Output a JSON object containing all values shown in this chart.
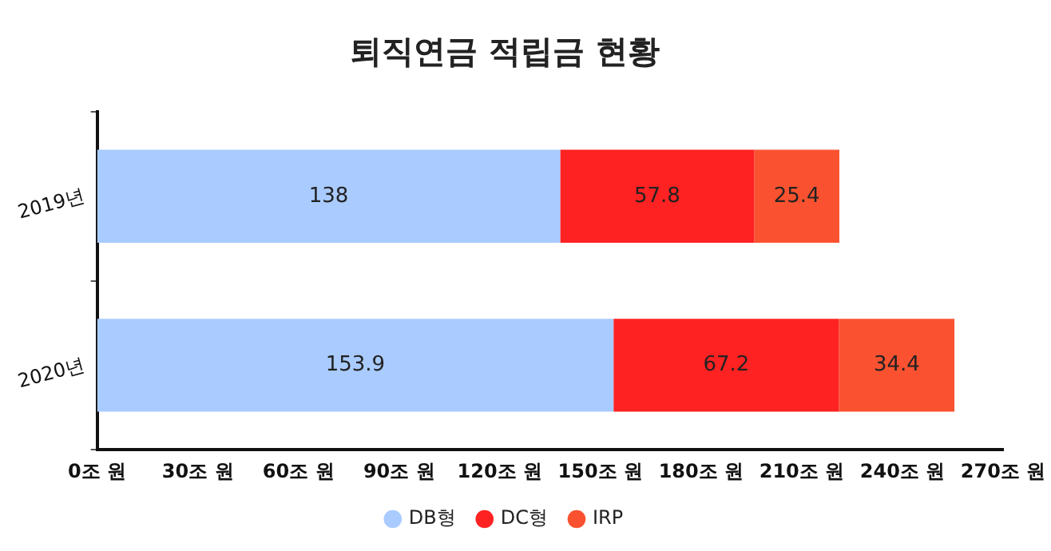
{
  "chart_data": {
    "type": "bar",
    "orientation": "horizontal",
    "stacked": true,
    "title": "퇴직연금 적립금 현황",
    "categories": [
      "2019년",
      "2020년"
    ],
    "series": [
      {
        "name": "DB형",
        "color": "#a9cbff",
        "values": [
          138,
          153.9
        ]
      },
      {
        "name": "DC형",
        "color": "#ff2222",
        "values": [
          57.8,
          67.2
        ]
      },
      {
        "name": "IRP",
        "color": "#fa5230",
        "values": [
          25.4,
          34.4
        ]
      }
    ],
    "xlim": [
      0,
      270
    ],
    "xticks": [
      {
        "value": 0,
        "label": "0조 원"
      },
      {
        "value": 30,
        "label": "30조 원"
      },
      {
        "value": 60,
        "label": "60조 원"
      },
      {
        "value": 90,
        "label": "90조 원"
      },
      {
        "value": 120,
        "label": "120조 원"
      },
      {
        "value": 150,
        "label": "150조 원"
      },
      {
        "value": 180,
        "label": "180조 원"
      },
      {
        "value": 210,
        "label": "210조 원"
      },
      {
        "value": 240,
        "label": "240조 원"
      },
      {
        "value": 270,
        "label": "270조 원"
      }
    ],
    "grid": false,
    "legend": "bottom",
    "data_labels": true
  }
}
